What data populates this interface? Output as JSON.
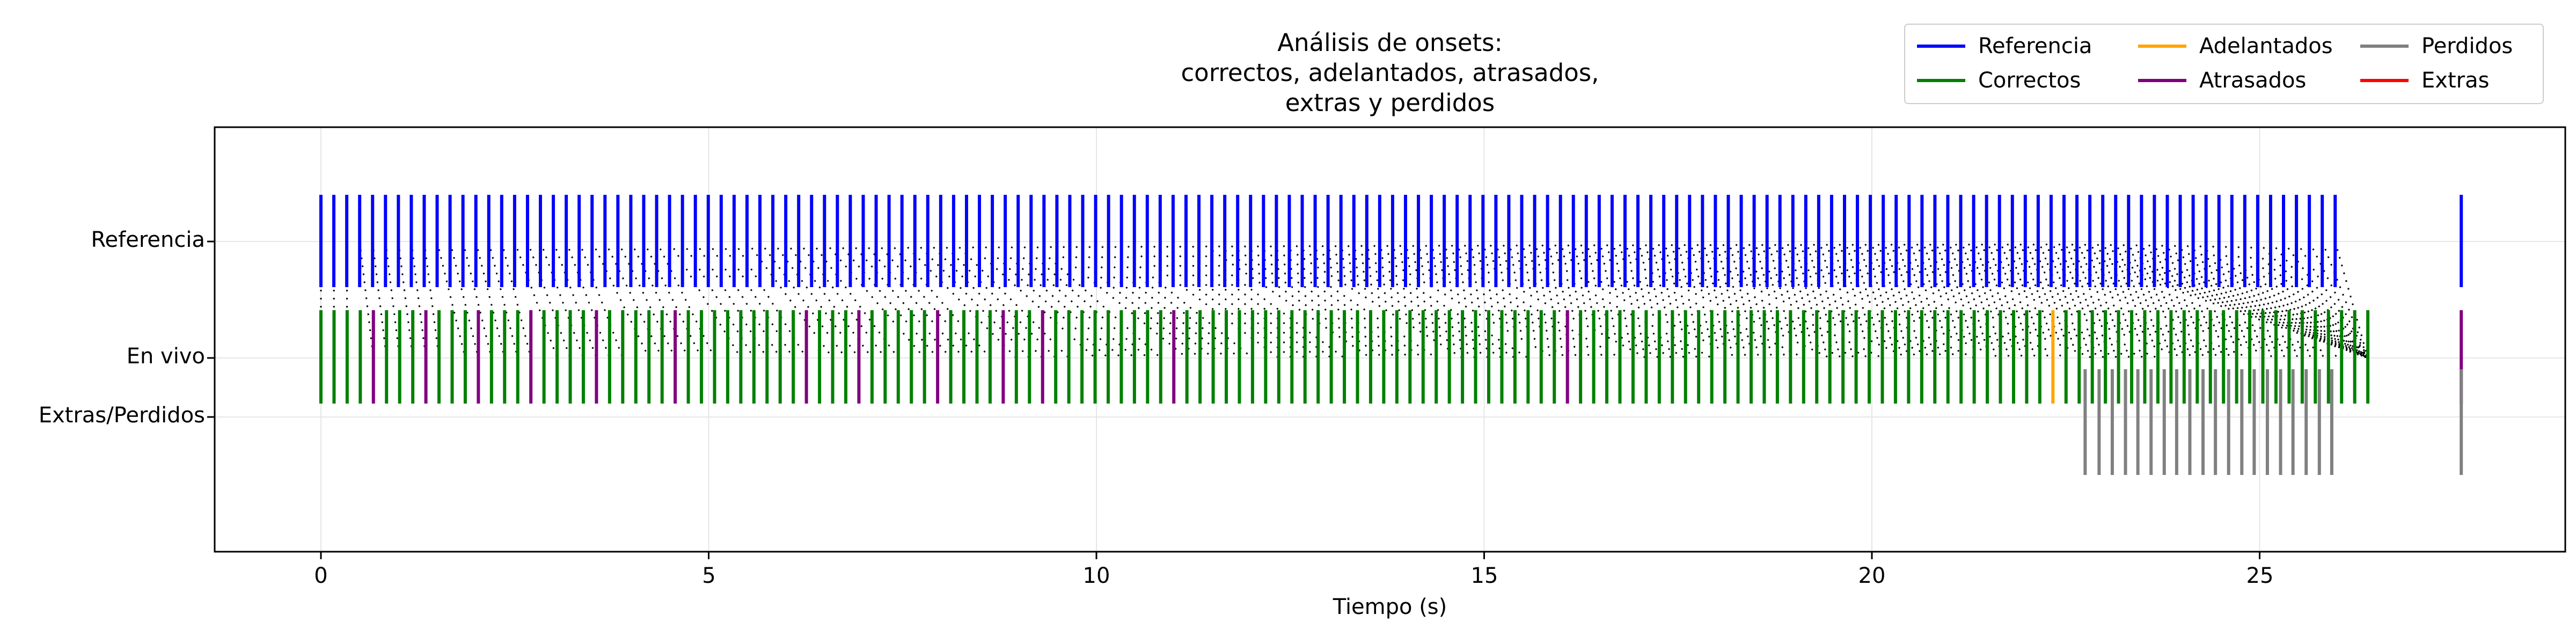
{
  "chart_data": {
    "type": "event-raster",
    "title_lines": [
      "Análisis de onsets:",
      "correctos, adelantados, atrasados,",
      "extras y perdidos"
    ],
    "xlabel": "Tiempo (s)",
    "xlim": [
      -1.4,
      28.9
    ],
    "xticks": [
      0,
      5,
      10,
      15,
      20,
      25
    ],
    "grid": true,
    "legend_placement": "top-right",
    "rows": [
      "Referencia",
      "En vivo",
      "Extras/Perdidos"
    ],
    "legend": [
      {
        "name": "Referencia",
        "color": "#0000ff"
      },
      {
        "name": "Correctos",
        "color": "#008000"
      },
      {
        "name": "Perdidos",
        "color": "#808080"
      },
      {
        "name": "Adelantados",
        "color": "#ffa500"
      },
      {
        "name": "Extras",
        "color": "#ff0000"
      },
      {
        "name": "Atrasados",
        "color": "#800080"
      }
    ],
    "colors": {
      "referencia": "#0000ff",
      "correctos": "#008000",
      "adelantados": "#ffa500",
      "atrasados": "#800080",
      "perdidos": "#808080",
      "extras": "#ff0000",
      "matches": "#000000"
    },
    "reference_onsets": {
      "start": 0.0,
      "end": 26.0,
      "interval": 0.1665,
      "extra": [
        27.6
      ]
    },
    "live_onsets": {
      "start": 0.0,
      "end": 26.4,
      "interval": 0.1692,
      "extra": [
        27.6
      ]
    },
    "late_onsets": [
      0.68,
      1.38,
      2.08,
      2.78,
      3.48,
      4.58,
      6.3,
      6.98,
      7.98,
      8.75,
      9.38,
      11.0,
      16.0
    ],
    "early_onsets": [
      22.3
    ],
    "missed_onsets": [
      22.75,
      22.93,
      23.1,
      23.27,
      23.43,
      23.6,
      23.77,
      23.93,
      24.1,
      24.27,
      24.43,
      24.6,
      24.77,
      24.93,
      25.1,
      25.27,
      25.43,
      25.6,
      25.77,
      25.93,
      27.6
    ],
    "extra_onsets": []
  }
}
